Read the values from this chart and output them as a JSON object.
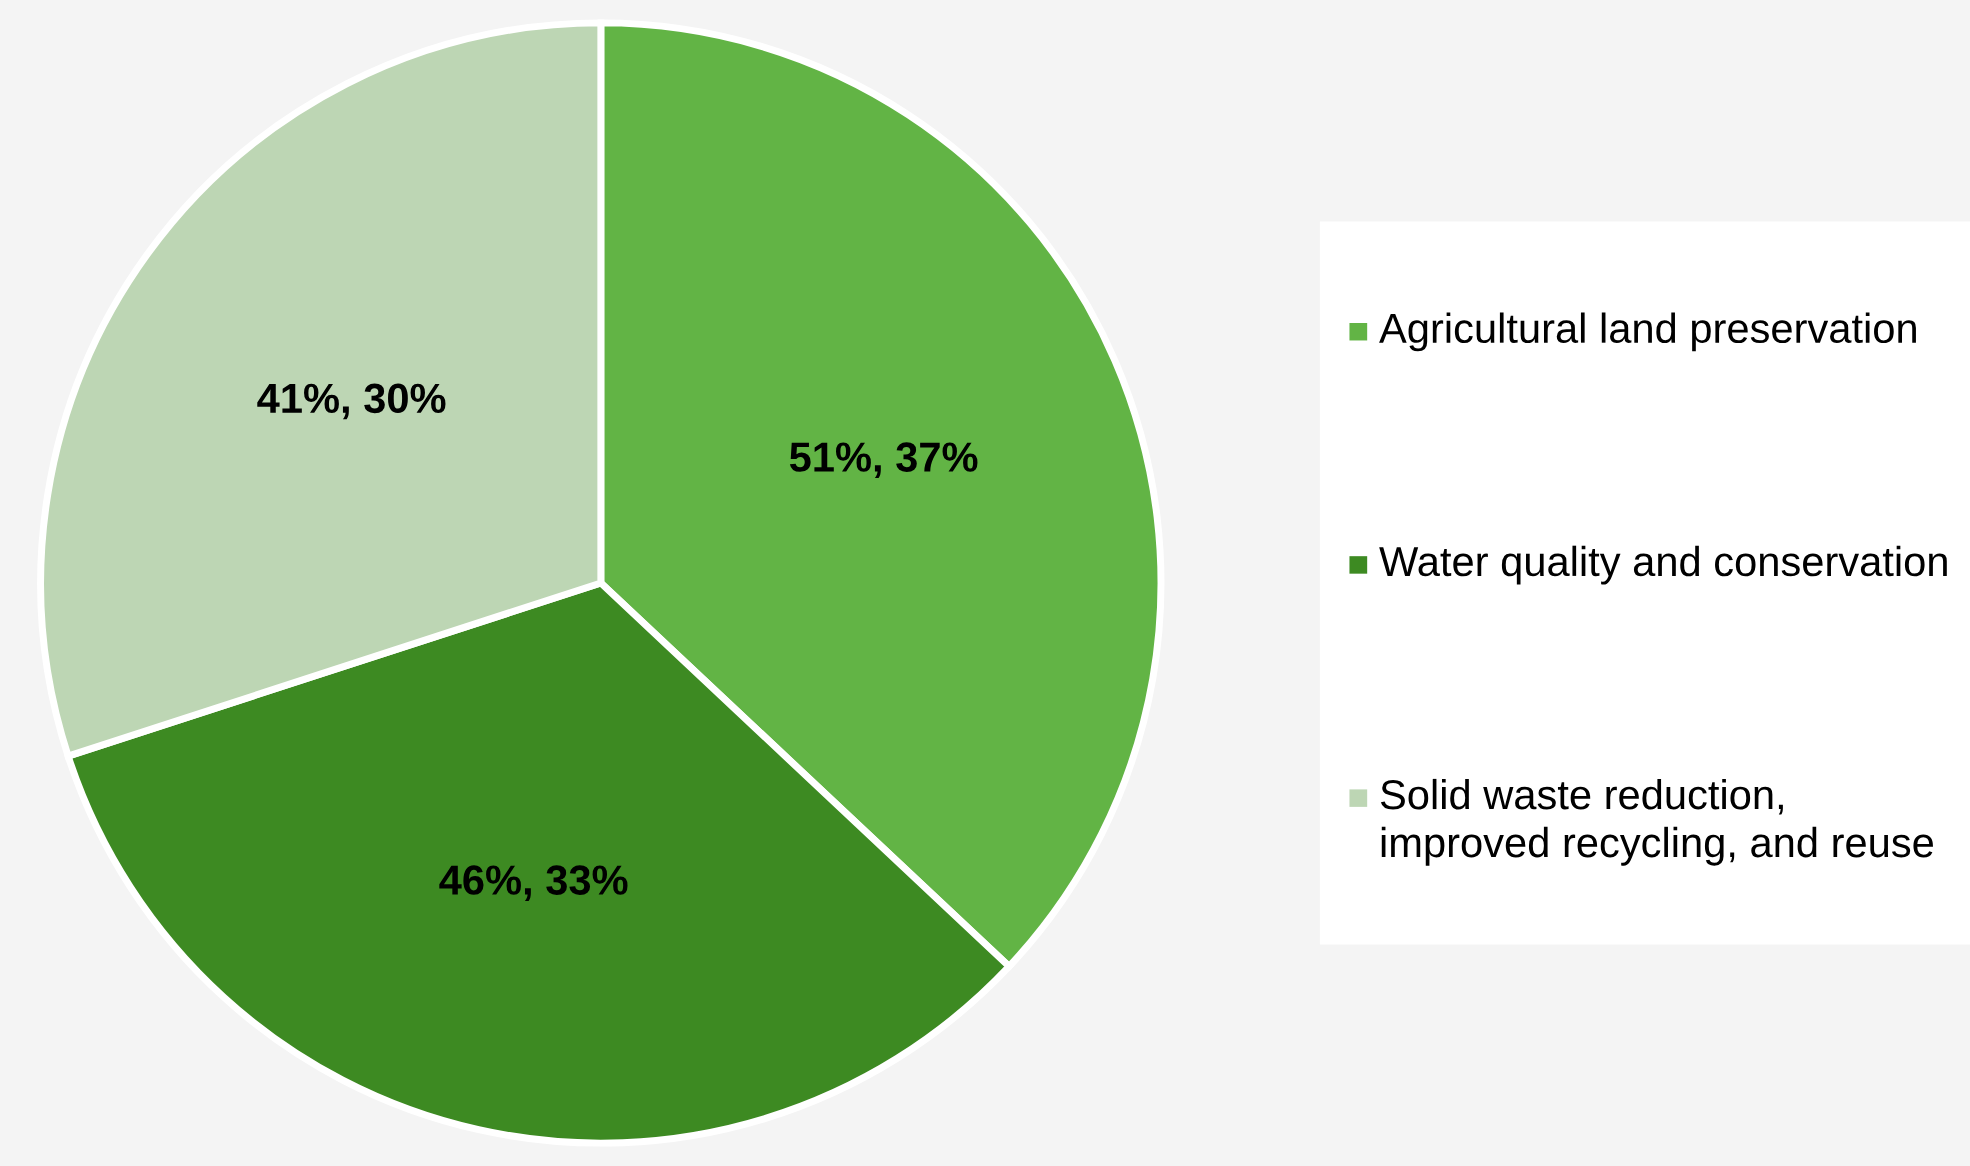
{
  "chart_data": {
    "type": "pie",
    "categories": [
      "Agricultural land preservation",
      "Water quality and conservation",
      "Solid waste reduction, improved recycling, and reuse"
    ],
    "values": [
      37,
      33,
      30
    ],
    "value_labels": [
      "51%, 37%",
      "46%, 33%",
      "41%, 30%"
    ],
    "colors": [
      "#62b445",
      "#3d8a22",
      "#bdd6b4"
    ],
    "legend": "right"
  }
}
